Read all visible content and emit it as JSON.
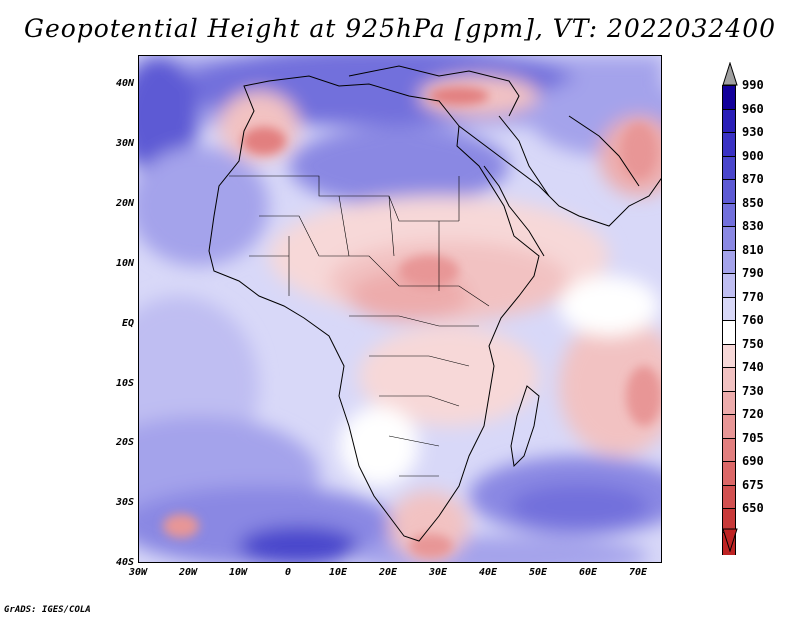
{
  "title": "Geopotential Height at 925hPa [gpm], VT: 2022032400",
  "credit": "GrADS: IGES/COLA",
  "axes": {
    "y_labels": [
      "40N",
      "30N",
      "20N",
      "10N",
      "EQ",
      "10S",
      "20S",
      "30S",
      "40S"
    ],
    "x_labels": [
      "30W",
      "20W",
      "10W",
      "0",
      "10E",
      "20E",
      "30E",
      "40E",
      "50E",
      "60E",
      "70E"
    ]
  },
  "colorbar": {
    "labels": [
      "990",
      "960",
      "930",
      "900",
      "870",
      "850",
      "830",
      "810",
      "790",
      "770",
      "760",
      "750",
      "740",
      "730",
      "720",
      "705",
      "690",
      "675",
      "650"
    ],
    "colors": [
      "#12009b",
      "#2a1fb8",
      "#3a32c4",
      "#4a46cc",
      "#5d5ad4",
      "#7270dc",
      "#8a88e3",
      "#a4a3eb",
      "#bfbef2",
      "#d8d8f8",
      "#ffffff",
      "#f7d8d8",
      "#f2c2c2",
      "#edacac",
      "#e89696",
      "#e27f7f",
      "#dc6868",
      "#d25151",
      "#c83a3a",
      "#be2323"
    ],
    "top_arrow_color": "#a0a0a0",
    "bottom_arrow_color": "#be2323"
  },
  "map": {
    "projection": "lat-lon",
    "lon_range": [
      -30,
      75
    ],
    "lat_range": [
      -40,
      45
    ],
    "field_description": "925 hPa geopotential height, valid 2022-03-24 00Z"
  }
}
